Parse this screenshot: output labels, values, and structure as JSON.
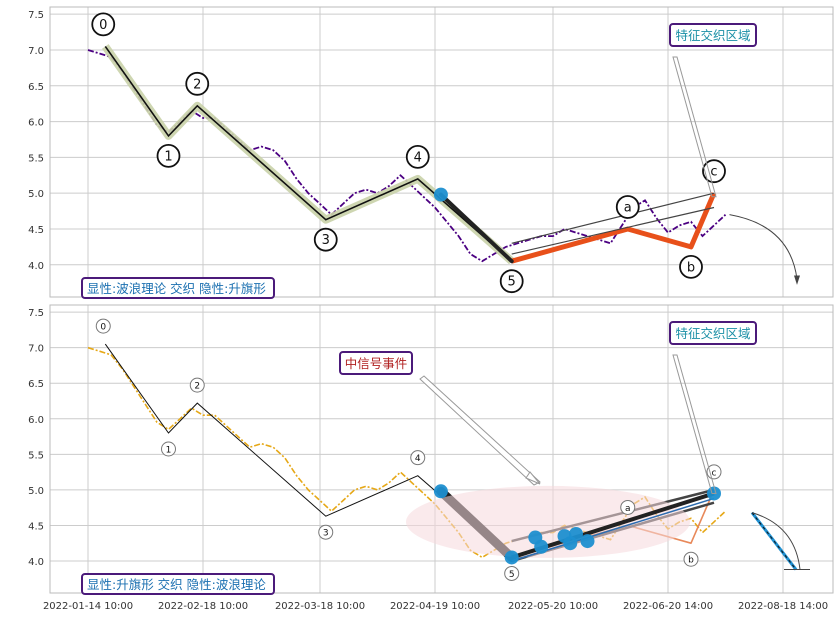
{
  "chart_data": [
    {
      "type": "line",
      "panel": "top",
      "ylim": [
        3.55,
        7.6
      ],
      "y_ticks": [
        "7.5",
        "7.0",
        "6.5",
        "6.0",
        "5.5",
        "5.0",
        "4.5",
        "4.0"
      ],
      "x_ticks": [
        "2022-01-14 10:00",
        "2022-02-18 10:00",
        "2022-03-18 10:00",
        "2022-04-19 10:00",
        "2022-05-20 10:00",
        "2022-06-20 14:00",
        "2022-08-18 14:00"
      ],
      "series_color": "#4b0082",
      "price": [
        [
          0,
          7.0
        ],
        [
          2,
          6.95
        ],
        [
          4,
          6.9
        ],
        [
          6,
          6.7
        ],
        [
          8,
          6.45
        ],
        [
          10,
          6.2
        ],
        [
          12,
          5.95
        ],
        [
          14,
          5.85
        ],
        [
          16,
          6.0
        ],
        [
          18,
          6.15
        ],
        [
          20,
          6.05
        ],
        [
          22,
          6.05
        ],
        [
          24,
          5.9
        ],
        [
          26,
          5.75
        ],
        [
          28,
          5.6
        ],
        [
          30,
          5.65
        ],
        [
          32,
          5.6
        ],
        [
          34,
          5.45
        ],
        [
          36,
          5.2
        ],
        [
          38,
          5.0
        ],
        [
          40,
          4.85
        ],
        [
          42,
          4.7
        ],
        [
          44,
          4.85
        ],
        [
          46,
          5.0
        ],
        [
          48,
          5.05
        ],
        [
          50,
          5.0
        ],
        [
          52,
          5.1
        ],
        [
          54,
          5.25
        ],
        [
          56,
          5.1
        ],
        [
          58,
          4.95
        ],
        [
          60,
          4.8
        ],
        [
          62,
          4.6
        ],
        [
          64,
          4.4
        ],
        [
          66,
          4.15
        ],
        [
          68,
          4.05
        ],
        [
          70,
          4.15
        ],
        [
          72,
          4.25
        ],
        [
          74,
          4.3
        ],
        [
          76,
          4.35
        ],
        [
          78,
          4.4
        ],
        [
          80,
          4.4
        ],
        [
          82,
          4.5
        ],
        [
          84,
          4.45
        ],
        [
          86,
          4.4
        ],
        [
          88,
          4.35
        ],
        [
          90,
          4.3
        ],
        [
          92,
          4.55
        ],
        [
          94,
          4.8
        ],
        [
          96,
          4.9
        ],
        [
          98,
          4.65
        ],
        [
          100,
          4.45
        ],
        [
          102,
          4.55
        ],
        [
          104,
          4.6
        ],
        [
          106,
          4.4
        ],
        [
          108,
          4.55
        ],
        [
          110,
          4.7
        ]
      ],
      "wave_points": [
        {
          "label": "0",
          "x": 3,
          "y": 7.05
        },
        {
          "label": "1",
          "x": 14,
          "y": 5.8
        },
        {
          "label": "2",
          "x": 19,
          "y": 6.22
        },
        {
          "label": "3",
          "x": 41,
          "y": 4.63
        },
        {
          "label": "4",
          "x": 57,
          "y": 5.2
        },
        {
          "label": "5",
          "x": 73,
          "y": 4.05
        },
        {
          "label": "a",
          "x": 93,
          "y": 4.5
        },
        {
          "label": "b",
          "x": 104,
          "y": 4.25
        },
        {
          "label": "c",
          "x": 108,
          "y": 5.0
        }
      ],
      "signal_points": [
        {
          "x": 61,
          "y": 4.98
        }
      ],
      "channel_lines": [
        {
          "from": [
            73,
            4.3
          ],
          "to": [
            108,
            5.0
          ]
        },
        {
          "from": [
            73,
            4.15
          ],
          "to": [
            108,
            4.8
          ]
        }
      ],
      "annotation": "特征交织区域",
      "pattern_label": "显性:波浪理论 交织 隐性:升旗形"
    },
    {
      "type": "line",
      "panel": "bottom",
      "ylim": [
        3.55,
        7.6
      ],
      "y_ticks": [
        "7.5",
        "7.0",
        "6.5",
        "6.0",
        "5.5",
        "5.0",
        "4.5",
        "4.0"
      ],
      "x_ticks": [
        "2022-01-14 10:00",
        "2022-02-18 10:00",
        "2022-03-18 10:00",
        "2022-04-19 10:00",
        "2022-05-20 10:00",
        "2022-06-20 14:00",
        "2022-08-18 14:00"
      ],
      "series_color": "#e6a817",
      "signal_points": [
        {
          "x": 61,
          "y": 4.98
        },
        {
          "x": 73,
          "y": 4.05
        },
        {
          "x": 77,
          "y": 4.33
        },
        {
          "x": 78,
          "y": 4.2
        },
        {
          "x": 82,
          "y": 4.35
        },
        {
          "x": 83,
          "y": 4.25
        },
        {
          "x": 84,
          "y": 4.38
        },
        {
          "x": 86,
          "y": 4.28
        },
        {
          "x": 108,
          "y": 4.95
        }
      ],
      "channel_lines": [
        {
          "from": [
            73,
            4.28
          ],
          "to": [
            108,
            5.0
          ]
        },
        {
          "from": [
            73,
            4.0
          ],
          "to": [
            108,
            4.82
          ]
        }
      ],
      "annotation": "特征交织区域",
      "event_label": "中信号事件",
      "pattern_label": "显性:升旗形 交织 隐性:波浪理论"
    }
  ]
}
